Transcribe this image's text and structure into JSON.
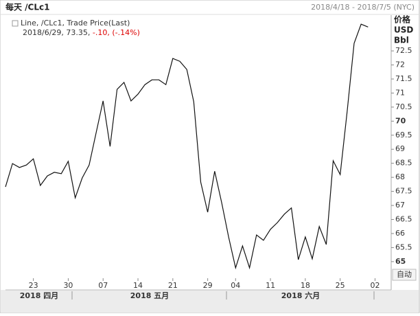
{
  "chart_data": {
    "type": "line",
    "title": "每天 /CLc1",
    "date_range": "2018/4/18 - 2018/7/5 (NYC)",
    "legend_title": "Line, /CLc1, Trade Price(Last)",
    "legend_date": "2018/6/29,",
    "legend_price": "73.35,",
    "legend_change": "-.10,",
    "legend_pct": "(-.14%)",
    "axis_title": [
      "价格",
      "USD",
      "Bbl"
    ],
    "button": "自动",
    "month_labels": [
      "2018 四月",
      "2018 五月",
      "2018 六月"
    ],
    "categories": [
      null,
      null,
      null,
      null,
      "23",
      null,
      null,
      null,
      null,
      "30",
      null,
      null,
      null,
      null,
      "07",
      null,
      null,
      null,
      null,
      "14",
      null,
      null,
      null,
      null,
      "21",
      null,
      null,
      null,
      null,
      "29",
      null,
      null,
      null,
      "04",
      null,
      null,
      null,
      null,
      "11",
      null,
      null,
      null,
      null,
      "18",
      null,
      null,
      null,
      null,
      "25",
      null,
      null,
      null,
      null,
      "02"
    ],
    "series": [
      {
        "name": "/CLc1",
        "color": "#111111",
        "values": [
          67.66,
          68.49,
          68.35,
          68.44,
          68.66,
          67.71,
          68.05,
          68.18,
          68.13,
          68.57,
          67.27,
          67.98,
          68.44,
          69.59,
          70.72,
          69.1,
          71.13,
          71.38,
          70.72,
          70.96,
          71.3,
          71.47,
          71.47,
          71.3,
          72.23,
          72.13,
          71.84,
          70.69,
          67.83,
          66.76,
          68.22,
          67.1,
          65.88,
          64.78,
          65.56,
          64.78,
          65.95,
          65.76,
          66.15,
          66.39,
          66.69,
          66.91,
          65.07,
          65.88,
          65.1,
          66.25,
          65.61,
          68.59,
          68.1,
          70.33,
          72.77,
          73.45,
          73.35,
          null
        ]
      }
    ],
    "ylim": [
      64.41,
      73.7
    ],
    "yticks": [
      65,
      65.5,
      66,
      66.5,
      67,
      67.5,
      68,
      68.5,
      69,
      69.5,
      70,
      70.5,
      71,
      71.5,
      72,
      72.5
    ]
  }
}
